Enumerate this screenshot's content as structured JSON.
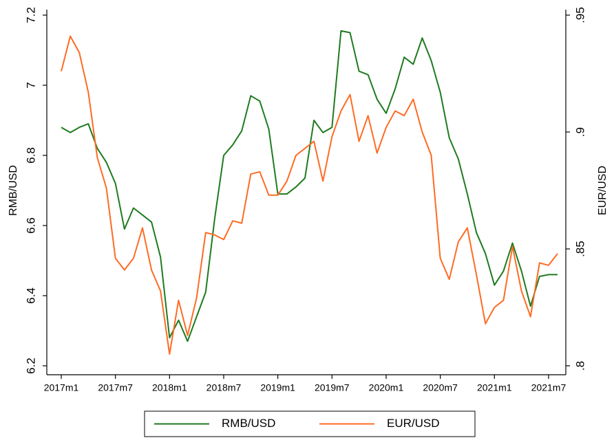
{
  "chart_data": {
    "type": "line",
    "y_label": "RMB/USD",
    "y2_label": "EUR/USD",
    "categories": [
      "2017m1",
      null,
      null,
      null,
      null,
      null,
      "2017m7",
      null,
      null,
      null,
      null,
      null,
      "2018m1",
      null,
      null,
      null,
      null,
      null,
      "2018m7",
      null,
      null,
      null,
      null,
      null,
      "2019m1",
      null,
      null,
      null,
      null,
      null,
      "2019m7",
      null,
      null,
      null,
      null,
      null,
      "2020m1",
      null,
      null,
      null,
      null,
      null,
      "2020m7",
      null,
      null,
      null,
      null,
      null,
      "2021m1",
      null,
      null,
      null,
      null,
      null,
      "2021m7",
      null
    ],
    "series": [
      {
        "name": "RMB/USD",
        "color": "#1e7a1e",
        "axis": "y",
        "values": [
          6.88,
          6.865,
          6.88,
          6.89,
          6.82,
          6.78,
          6.72,
          6.59,
          6.65,
          6.63,
          6.61,
          6.51,
          6.28,
          6.33,
          6.27,
          6.34,
          6.41,
          6.62,
          6.8,
          6.83,
          6.87,
          6.97,
          6.955,
          6.875,
          6.69,
          6.69,
          6.71,
          6.735,
          6.9,
          6.865,
          6.88,
          7.155,
          7.15,
          7.04,
          7.03,
          6.96,
          6.92,
          6.99,
          7.08,
          7.06,
          7.135,
          7.07,
          6.98,
          6.85,
          6.79,
          6.69,
          6.58,
          6.52,
          6.43,
          6.47,
          6.55,
          6.47,
          6.37,
          6.455,
          6.46,
          6.46
        ]
      },
      {
        "name": "EUR/USD",
        "color": "#ff6a21",
        "axis": "y2",
        "values": [
          0.926,
          0.941,
          0.934,
          0.917,
          0.889,
          0.876,
          0.846,
          0.841,
          0.846,
          0.859,
          0.841,
          0.832,
          0.805,
          0.828,
          0.813,
          0.829,
          0.857,
          0.856,
          0.854,
          0.862,
          0.861,
          0.882,
          0.883,
          0.873,
          0.873,
          0.879,
          0.89,
          0.893,
          0.896,
          0.879,
          0.898,
          0.909,
          0.916,
          0.896,
          0.907,
          0.891,
          0.902,
          0.909,
          0.907,
          0.914,
          0.9,
          0.89,
          0.846,
          0.837,
          0.853,
          0.859,
          0.839,
          0.818,
          0.825,
          0.828,
          0.851,
          0.832,
          0.821,
          0.844,
          0.843,
          0.848
        ]
      }
    ],
    "ylim": [
      6.2,
      7.2
    ],
    "yticks": [
      6.2,
      6.4,
      6.6,
      6.8,
      7,
      7.2
    ],
    "y2lim": [
      0.8,
      0.95
    ],
    "y2ticks": [
      {
        "value": 0.8,
        "label": ".8"
      },
      {
        "value": 0.85,
        "label": ".85"
      },
      {
        "value": 0.9,
        "label": ".9"
      },
      {
        "value": 0.95,
        "label": ".95"
      }
    ],
    "grid": false,
    "legend": "bottom"
  }
}
